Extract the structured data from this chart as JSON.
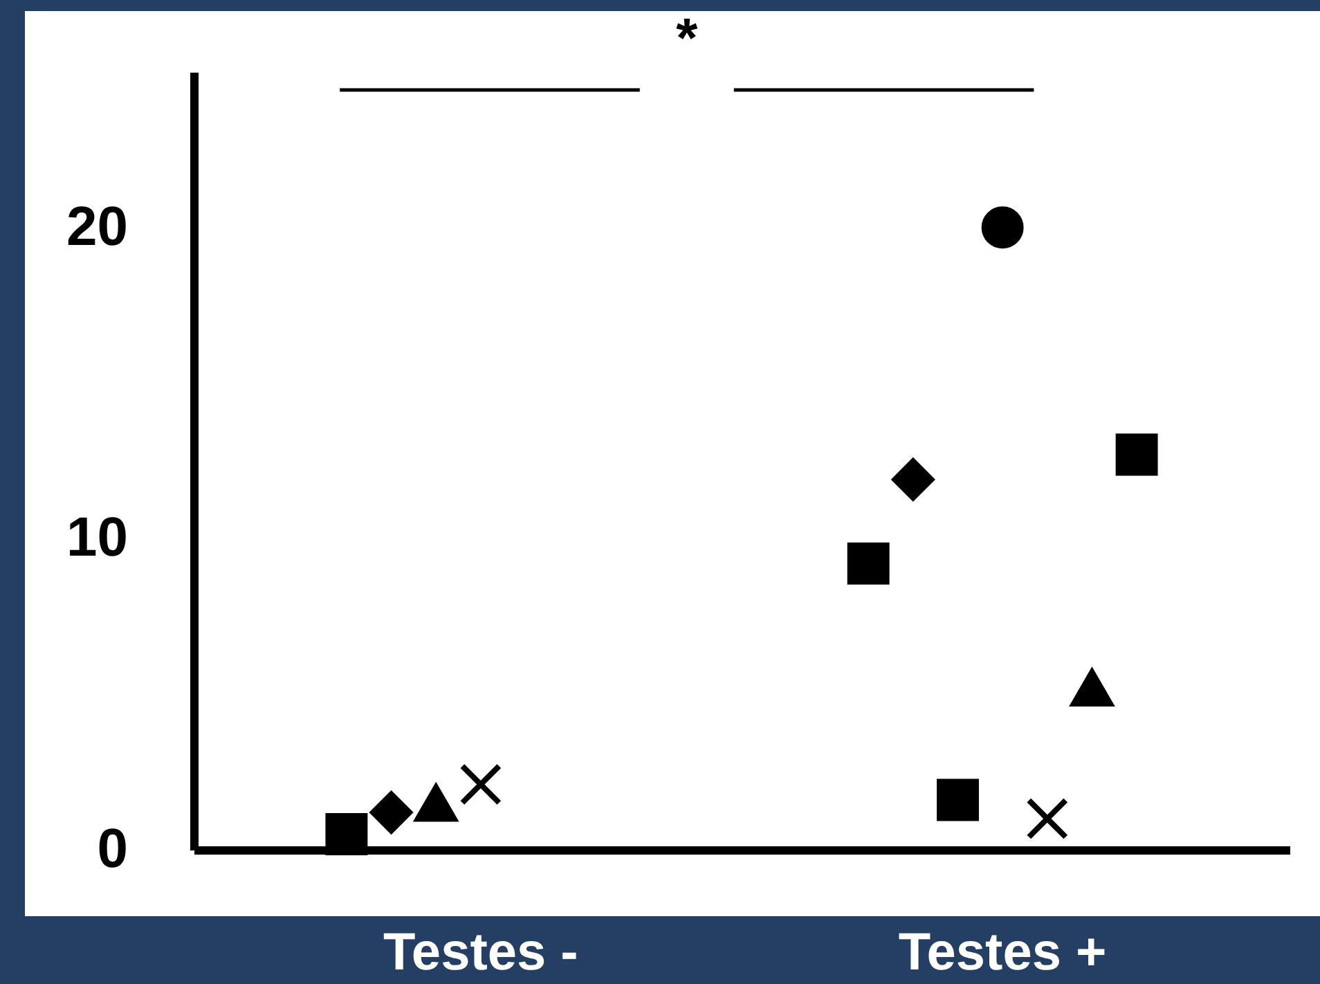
{
  "chart_data": {
    "type": "scatter",
    "categories": [
      "Testes -",
      "Testes +"
    ],
    "ylim": [
      0,
      25
    ],
    "yticks": [
      0,
      10,
      20
    ],
    "grid": false,
    "legend": false,
    "annotations": [
      "*"
    ],
    "series": [
      {
        "color": "#000000",
        "marker": "square",
        "values": [
          0.5,
          null
        ]
      },
      {
        "color": "#000000",
        "marker": "diamond",
        "values": [
          1.2,
          null
        ]
      },
      {
        "color": "#000000",
        "marker": "triangle",
        "values": [
          1.5,
          null
        ]
      },
      {
        "color": "#000000",
        "marker": "cross",
        "values": [
          2.1,
          null
        ]
      },
      {
        "color": "#000000",
        "marker": "square",
        "values": [
          null,
          9.2
        ]
      },
      {
        "color": "#000000",
        "marker": "diamond",
        "values": [
          null,
          11.9
        ]
      },
      {
        "color": "#000000",
        "marker": "square",
        "values": [
          null,
          1.6
        ]
      },
      {
        "color": "#000000",
        "marker": "circle",
        "values": [
          null,
          20
        ]
      },
      {
        "color": "#000000",
        "marker": "cross",
        "values": [
          null,
          1.0
        ]
      },
      {
        "color": "#000000",
        "marker": "triangle",
        "values": [
          null,
          5.2
        ]
      },
      {
        "color": "#000000",
        "marker": "square",
        "values": [
          null,
          12.7
        ]
      }
    ]
  }
}
